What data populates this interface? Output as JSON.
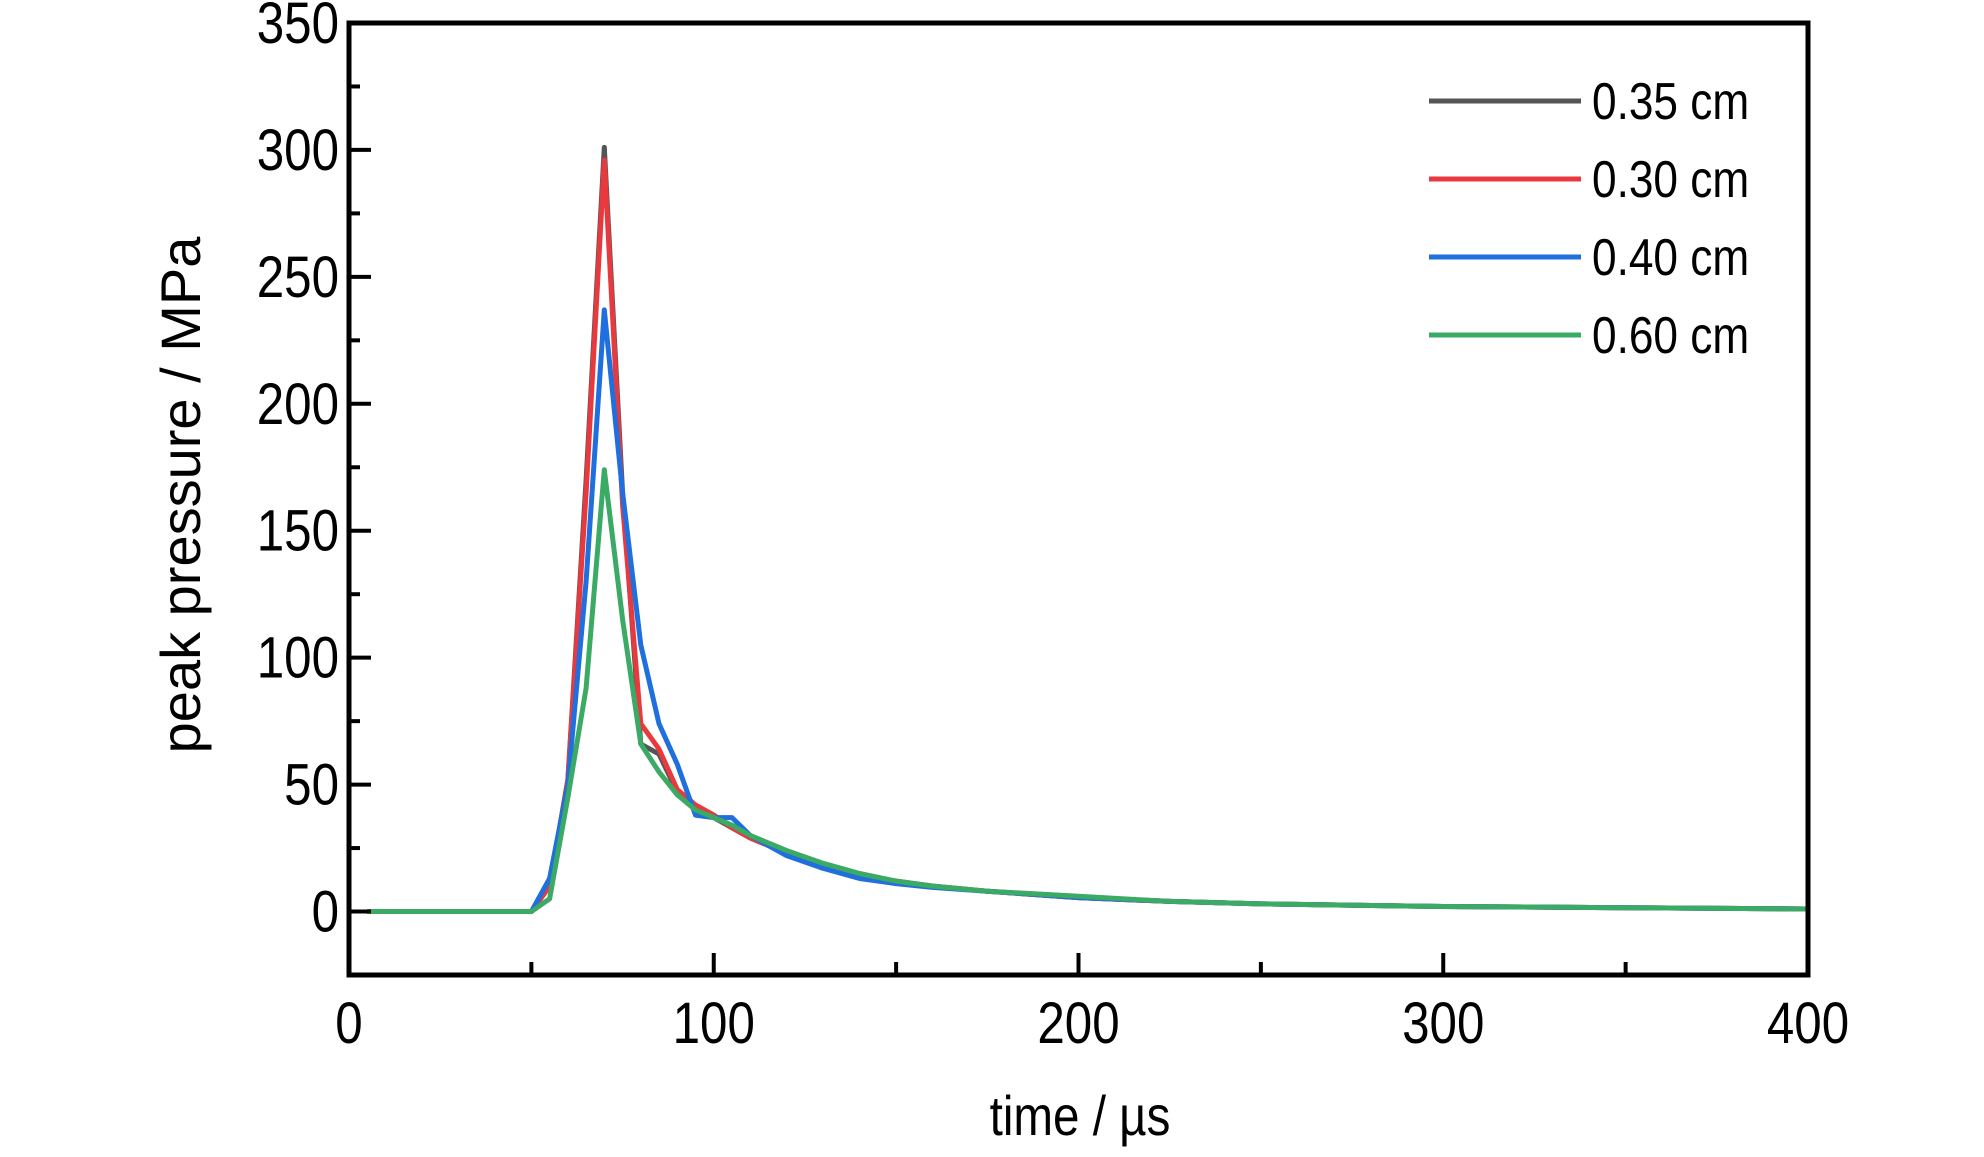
{
  "chart_data": {
    "type": "line",
    "title": "",
    "xlabel": "time / µs",
    "ylabel": "peak pressure / MPa",
    "xlim": [
      0,
      400
    ],
    "ylim": [
      -25,
      350
    ],
    "xticks": [
      0,
      100,
      200,
      300,
      400
    ],
    "xtick_labels": [
      "0",
      "100",
      "200",
      "300",
      "400"
    ],
    "yticks": [
      0,
      50,
      100,
      150,
      200,
      250,
      300,
      350
    ],
    "ytick_labels": [
      "0",
      "50",
      "100",
      "150",
      "200",
      "250",
      "300",
      "350"
    ],
    "grid": false,
    "legend_position": "top-right",
    "x": [
      5,
      50,
      55,
      60,
      65,
      70,
      75,
      80,
      85,
      90,
      95,
      100,
      105,
      110,
      120,
      130,
      140,
      150,
      160,
      175,
      200,
      225,
      250,
      300,
      350,
      400
    ],
    "series": [
      {
        "name": "0.35 cm",
        "color": "#555555",
        "values": [
          0,
          0,
          10,
          52,
          170,
          301,
          165,
          66,
          62,
          47,
          40,
          37,
          33,
          29,
          23,
          18,
          14,
          12,
          10,
          8,
          5.5,
          4,
          3,
          2,
          1.5,
          1
        ]
      },
      {
        "name": "0.30 cm",
        "color": "#e8393f",
        "values": [
          0,
          0,
          10,
          52,
          165,
          296,
          160,
          74,
          64,
          48,
          42,
          38,
          33,
          29,
          23,
          18,
          14,
          12,
          10,
          8,
          5.5,
          4,
          3,
          2,
          1.5,
          1
        ]
      },
      {
        "name": "0.40 cm",
        "color": "#1f6fde",
        "values": [
          0,
          0,
          13,
          50,
          130,
          237,
          165,
          105,
          74,
          58,
          38,
          37,
          37,
          30,
          22,
          17,
          13,
          11,
          9.5,
          8,
          5.5,
          4,
          3,
          2,
          1.5,
          1
        ]
      },
      {
        "name": "0.60 cm",
        "color": "#3aaa64",
        "values": [
          0,
          0,
          5,
          45,
          88,
          174,
          115,
          66,
          55,
          46,
          40,
          37,
          34,
          30,
          24,
          19,
          15,
          12,
          10,
          8,
          6,
          4,
          3,
          2,
          1.5,
          1
        ]
      }
    ]
  }
}
